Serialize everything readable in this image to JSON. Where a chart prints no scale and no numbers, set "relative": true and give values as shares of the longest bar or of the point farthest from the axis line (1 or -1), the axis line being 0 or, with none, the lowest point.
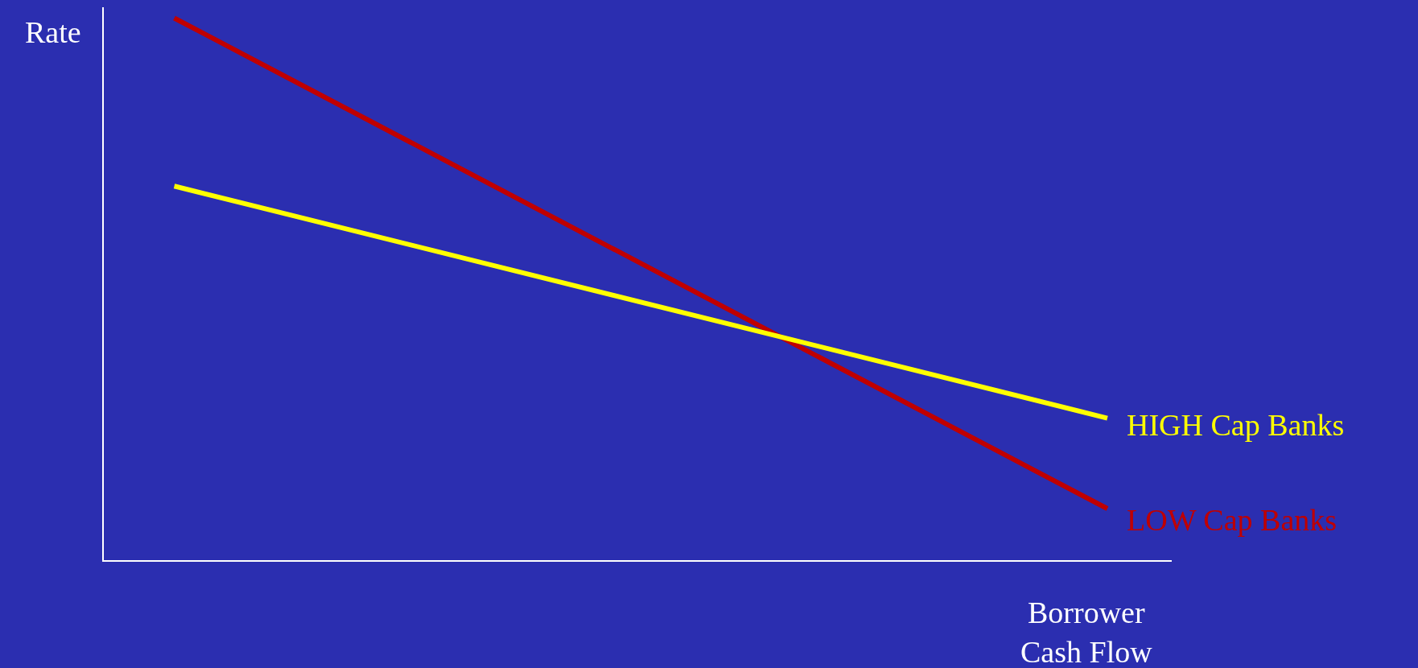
{
  "chart_data": {
    "type": "line",
    "relative": true,
    "ylabel": "Rate",
    "xlabel": "Borrower\nCash Flow",
    "categories": [
      null,
      null
    ],
    "series": [
      {
        "name": "LOW Cap Banks",
        "color": "#c00000",
        "values": [
          1,
          0.095
        ]
      },
      {
        "name": "HIGH Cap Banks",
        "color": "#ffff00",
        "values": [
          0.69,
          0.262
        ]
      }
    ],
    "grid": false,
    "legend": false,
    "marker": "none",
    "line_style": "solid"
  }
}
